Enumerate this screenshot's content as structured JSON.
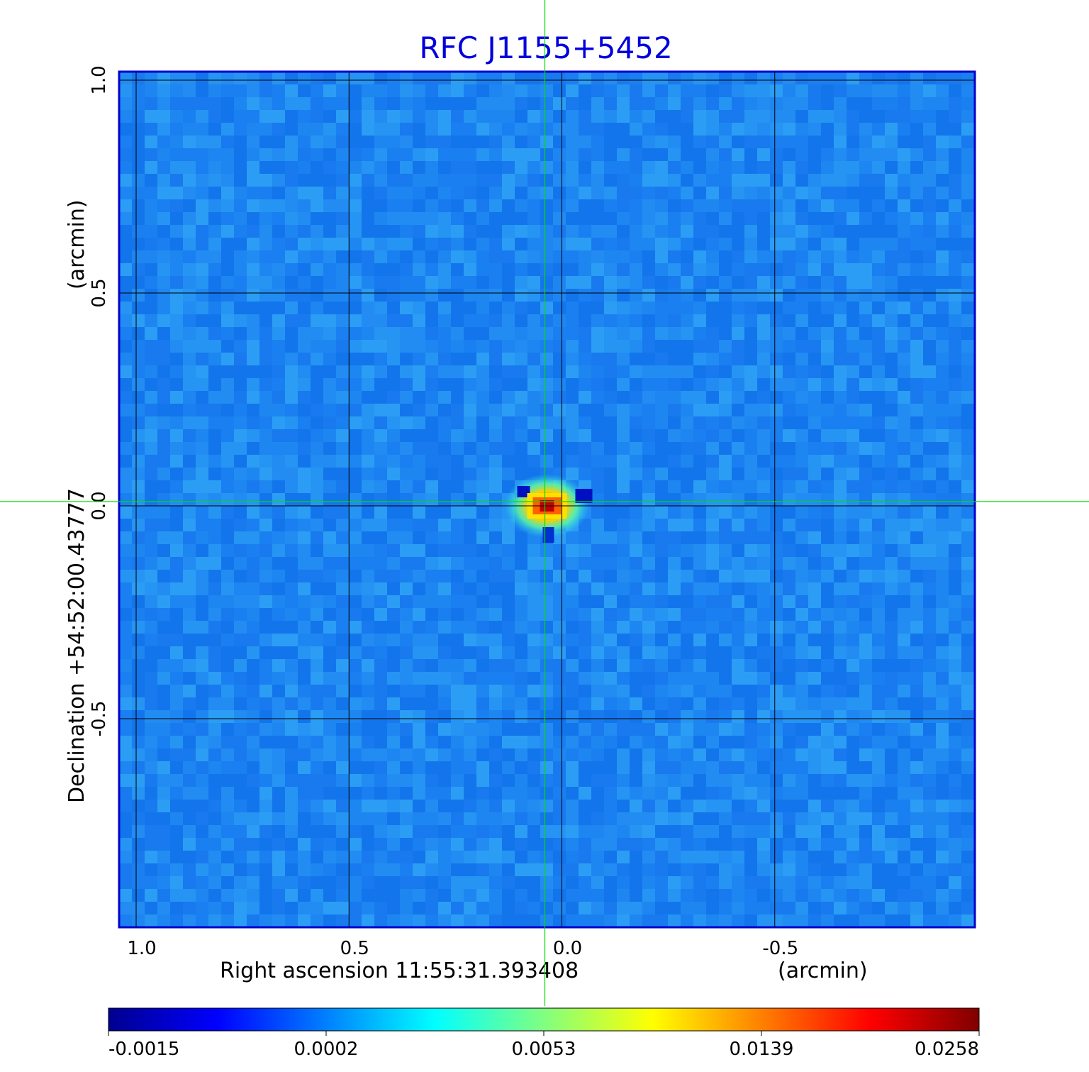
{
  "chart_data": {
    "type": "heatmap",
    "title": "RFC J1155+5452",
    "xlabel": "Right ascension  11:55:31.393408",
    "xunit": "(arcmin)",
    "ylabel": "Declination  +54:52:00.43777",
    "yunit": "(arcmin)",
    "x_ticks": [
      1.0,
      0.5,
      0.0,
      -0.5
    ],
    "x_tick_labels": [
      "1.0",
      "0.5",
      "0.0",
      "-0.5"
    ],
    "y_ticks": [
      1.0,
      0.5,
      0.0,
      -0.5
    ],
    "y_tick_labels": [
      "1.0",
      "0.5",
      "0.0",
      "-0.5"
    ],
    "xlim": [
      1.04,
      -0.97
    ],
    "ylim": [
      -0.99,
      1.02
    ],
    "grid": true,
    "crosshair": {
      "x": 0.04,
      "y": 0.01,
      "color": "#00e000"
    },
    "colorbar": {
      "tick_labels": [
        "-0.0015",
        "0.0002",
        "0.0053",
        "0.0139",
        "0.0258"
      ],
      "colors": [
        "#00008f",
        "#0000ff",
        "#0080ff",
        "#00ffff",
        "#80ff80",
        "#ffff00",
        "#ff8000",
        "#ff0000",
        "#800000"
      ]
    },
    "source": {
      "x": 0.035,
      "y": 0.0,
      "peak": 0.0258
    },
    "colors": {
      "title": "#0000dd",
      "frame": "#0000cc",
      "grid": "#000000",
      "background": "#1c84f0"
    }
  }
}
